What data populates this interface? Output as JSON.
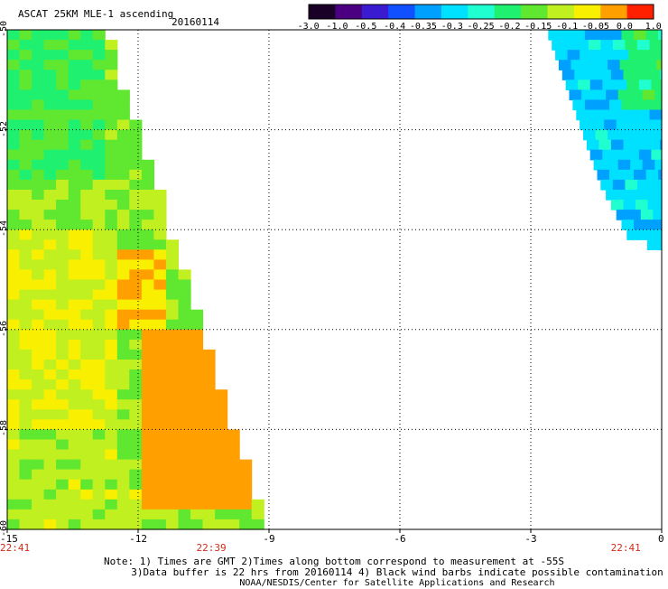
{
  "header": {
    "title": "ASCAT 25KM MLE-1 ascending",
    "date": "20160114"
  },
  "colorbar": {
    "labels": [
      "-3.0",
      "-1.0",
      "-0.5",
      "-0.4",
      "-0.35",
      "-0.3",
      "-0.25",
      "-0.2",
      "-0.15",
      "-0.1",
      "-0.05",
      "0.0",
      "1.0"
    ],
    "colors": [
      "#1a0026",
      "#4b0082",
      "#3a1bd0",
      "#1050ff",
      "#00a0ff",
      "#00e0ff",
      "#20ffd0",
      "#20f070",
      "#60e830",
      "#c0f020",
      "#f8f000",
      "#ffa000",
      "#ff2000"
    ]
  },
  "chart_data": {
    "type": "heatmap",
    "title": "ASCAT 25KM MLE-1 ascending",
    "xlim": [
      -15,
      0
    ],
    "ylim": [
      -60,
      -50
    ],
    "x_ticks": [
      "-15",
      "-12",
      "-9",
      "-6",
      "-3",
      "0"
    ],
    "y_ticks": [
      "-50",
      "-52",
      "-54",
      "-56",
      "-58",
      "-60"
    ],
    "grid": true,
    "time_labels": [
      {
        "lon": -15,
        "text": "22:41"
      },
      {
        "lon": -10.5,
        "text": "22:39"
      },
      {
        "lon": -1,
        "text": "22:41"
      }
    ],
    "swaths": [
      {
        "name": "left",
        "east_edge": [
          [
            -50.0,
            -12.8
          ],
          [
            -51.0,
            -12.5
          ],
          [
            -52.0,
            -12.1
          ],
          [
            -53.0,
            -11.7
          ],
          [
            -54.0,
            -11.4
          ],
          [
            -55.0,
            -11.0
          ],
          [
            -56.0,
            -10.6
          ],
          [
            -57.0,
            -10.3
          ],
          [
            -58.0,
            -9.9
          ],
          [
            -59.0,
            -9.5
          ],
          [
            -60.0,
            -9.1
          ]
        ],
        "regions": [
          {
            "lon_min": -15,
            "lon_max": -13,
            "lat_min": -53,
            "lat_max": -50,
            "value": -0.15
          },
          {
            "lon_min": -15,
            "lon_max": -12.5,
            "lat_min": -54,
            "lat_max": -53,
            "value": -0.1
          },
          {
            "lon_min": -12.5,
            "lon_max": -11.5,
            "lat_min": -56,
            "lat_max": -54.3,
            "value": 0.0
          },
          {
            "lon_min": -15,
            "lon_max": -12.5,
            "lat_min": -58,
            "lat_max": -54,
            "value": -0.05
          },
          {
            "lon_min": -12,
            "lon_max": -9.5,
            "lat_min": -59.5,
            "lat_max": -56,
            "value": 0.05
          },
          {
            "lon_min": -15,
            "lon_max": -12,
            "lat_min": -60,
            "lat_max": -58,
            "value": -0.08
          }
        ]
      },
      {
        "name": "right",
        "west_edge": [
          [
            -50.0,
            -2.6
          ],
          [
            -51.0,
            -2.2
          ],
          [
            -52.0,
            -1.8
          ],
          [
            -53.0,
            -1.4
          ],
          [
            -54.0,
            -0.8
          ],
          [
            -54.3,
            -0.1
          ]
        ],
        "regions": [
          {
            "lon_min": -2.6,
            "lon_max": 0,
            "lat_min": -54.3,
            "lat_max": -50,
            "value": -0.28
          },
          {
            "lon_min": -1,
            "lon_max": 0,
            "lat_min": -51.5,
            "lat_max": -50,
            "value": -0.18
          }
        ]
      }
    ]
  },
  "footer": {
    "line1": "Note: 1) Times are GMT 2)Times along bottom correspond to measurement at -55S",
    "line2": "3)Data buffer is 22 hrs from 20160114 4) Black wind barbs indicate possible contamination",
    "line3": "NOAA/NESDIS/Center for Satellite Applications and Research"
  }
}
